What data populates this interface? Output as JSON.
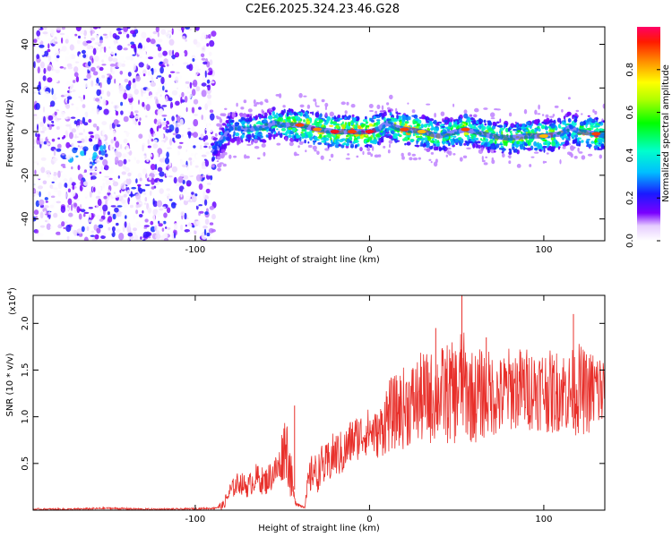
{
  "figure_title": "C2E6.2025.324.23.46.G28",
  "chart_data": [
    {
      "type": "heatmap",
      "title": "C2E6.2025.324.23.46.G28",
      "xlabel": "Height of straight line (km)",
      "ylabel": "Frequency (Hz)",
      "xlim": [
        -193,
        135
      ],
      "ylim": [
        -50,
        48
      ],
      "xticks": [
        -100,
        0,
        100
      ],
      "xtick_labels": [
        "-100",
        "0",
        "100"
      ],
      "yticks": [
        -40,
        -20,
        0,
        20,
        40
      ],
      "ytick_labels": [
        "-40",
        "-20",
        "0",
        "20",
        "40"
      ],
      "colorbar": {
        "label": "Normalized spectral amplitude",
        "range": [
          0,
          1
        ],
        "ticks": [
          0.0,
          0.2,
          0.4,
          0.6,
          0.8
        ],
        "tick_labels": [
          "0.0",
          "0.2",
          "0.4",
          "0.6",
          "0.8"
        ],
        "colormap": "rainbow (violet to red)"
      },
      "noise_region_x": [
        -193,
        -89
      ],
      "signal_onset_x": -90,
      "signal_trace": {
        "x": [
          -90,
          -85,
          -80,
          -70,
          -60,
          -55,
          -50,
          -45,
          -40,
          -30,
          -20,
          -10,
          0,
          5,
          10,
          15,
          20,
          30,
          40,
          50,
          55,
          60,
          70,
          80,
          90,
          100,
          110,
          115,
          120,
          130,
          135
        ],
        "frequency_hz": [
          -10,
          -4,
          2,
          1,
          2,
          4,
          3,
          3,
          3,
          1,
          0,
          0,
          0,
          1,
          4,
          2,
          1,
          0,
          -2,
          0,
          1,
          0,
          -2,
          -3,
          -2,
          -2,
          -1,
          2,
          0,
          -1,
          -2
        ],
        "amplitude": [
          0.3,
          0.4,
          0.45,
          0.5,
          0.55,
          0.6,
          0.65,
          0.75,
          0.9,
          0.85,
          0.95,
          0.9,
          0.95,
          0.75,
          0.5,
          0.7,
          0.9,
          0.8,
          0.65,
          0.6,
          0.9,
          0.6,
          0.65,
          0.7,
          0.7,
          0.8,
          0.75,
          0.5,
          0.65,
          0.9,
          0.55
        ]
      }
    },
    {
      "type": "line",
      "xlabel": "Height of straight line (km)",
      "ylabel": "SNR (10 * v/v)",
      "y_multiplier_label": "(x10",
      "y_multiplier_exponent": "4",
      "y_multiplier_close": ")",
      "xlim": [
        -193,
        135
      ],
      "ylim": [
        0,
        2.3
      ],
      "xticks": [
        -100,
        0,
        100
      ],
      "xtick_labels": [
        "-100",
        "0",
        "100"
      ],
      "yticks": [
        0.5,
        1.0,
        1.5,
        2.0
      ],
      "ytick_labels": [
        "0.5",
        "1.0",
        "1.5",
        "2.0"
      ],
      "color": "#e8302b",
      "series": [
        {
          "name": "SNR",
          "x": [
            -193,
            -170,
            -150,
            -130,
            -110,
            -90,
            -84,
            -80,
            -75,
            -70,
            -65,
            -60,
            -55,
            -52,
            -50,
            -48,
            -45,
            -43,
            -40,
            -37,
            -35,
            -32,
            -30,
            -28,
            -25,
            -22,
            -20,
            -15,
            -10,
            -5,
            0,
            5,
            10,
            15,
            20,
            25,
            30,
            35,
            40,
            45,
            50,
            53,
            55,
            60,
            65,
            70,
            75,
            80,
            85,
            90,
            95,
            100,
            105,
            110,
            115,
            120,
            125,
            130,
            135
          ],
          "y": [
            0.01,
            0.01,
            0.02,
            0.01,
            0.01,
            0.02,
            0.05,
            0.2,
            0.3,
            0.25,
            0.35,
            0.3,
            0.4,
            0.45,
            0.6,
            0.75,
            0.35,
            0.1,
            0.05,
            0.04,
            0.3,
            0.45,
            0.35,
            0.5,
            0.45,
            0.55,
            0.6,
            0.6,
            0.75,
            0.8,
            0.85,
            0.8,
            1.0,
            1.05,
            1.1,
            1.15,
            1.2,
            1.2,
            1.25,
            1.25,
            1.25,
            1.4,
            1.3,
            1.2,
            1.25,
            1.25,
            1.2,
            1.3,
            1.3,
            1.3,
            1.3,
            1.3,
            1.25,
            1.3,
            1.25,
            1.3,
            1.25,
            1.3,
            1.25
          ],
          "noise_amplitude": [
            0.01,
            0.01,
            0.01,
            0.01,
            0.01,
            0.01,
            0.05,
            0.1,
            0.12,
            0.12,
            0.15,
            0.15,
            0.18,
            0.2,
            0.3,
            0.4,
            0.25,
            0.05,
            0.02,
            0.02,
            0.2,
            0.2,
            0.2,
            0.2,
            0.25,
            0.25,
            0.25,
            0.25,
            0.25,
            0.25,
            0.25,
            0.25,
            0.4,
            0.4,
            0.45,
            0.45,
            0.5,
            0.5,
            0.5,
            0.55,
            0.55,
            0.6,
            0.55,
            0.5,
            0.5,
            0.45,
            0.45,
            0.45,
            0.45,
            0.45,
            0.45,
            0.45,
            0.45,
            0.45,
            0.45,
            0.5,
            0.45,
            0.45,
            0.45
          ],
          "peaks": [
            {
              "x": -43,
              "y": 1.12
            },
            {
              "x": 53,
              "y": 2.3
            },
            {
              "x": 117,
              "y": 2.1
            },
            {
              "x": 38,
              "y": 1.95
            },
            {
              "x": 67,
              "y": 1.85
            }
          ]
        }
      ]
    }
  ]
}
